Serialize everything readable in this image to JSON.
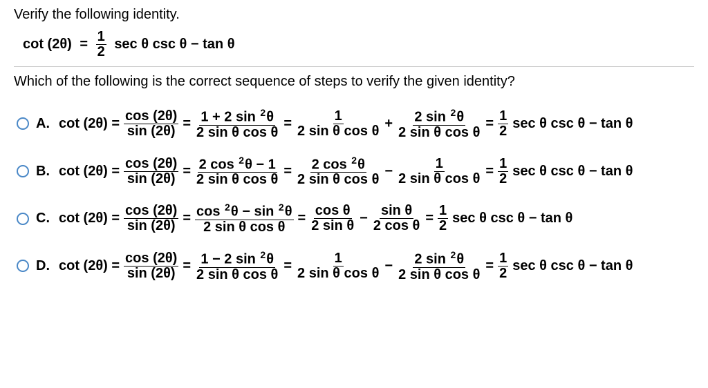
{
  "topRule": true,
  "prompt": "Verify the following identity.",
  "identity": {
    "left": "cot (2θ)",
    "eq": " = ",
    "frac": {
      "num": "1",
      "den": "2"
    },
    "right_after_frac": " sec θ csc θ − tan θ"
  },
  "midRule": true,
  "subprompt": "Which of the following is the correct sequence of steps to verify the given identity?",
  "options": [
    {
      "label": "A.",
      "start": "cot (2θ) = ",
      "parts": [
        {
          "type": "frac",
          "num": "cos (2θ)",
          "den": "sin (2θ)"
        },
        {
          "type": "txt",
          "text": " = "
        },
        {
          "type": "frac",
          "num": "1 + 2 sin ²θ",
          "den": "2 sin θ cos θ"
        },
        {
          "type": "txt",
          "text": " = "
        },
        {
          "type": "frac",
          "num": "1",
          "den": "2 sin θ cos θ"
        },
        {
          "type": "txt",
          "text": " + "
        },
        {
          "type": "frac",
          "num": "2 sin ²θ",
          "den": "2 sin θ cos θ"
        },
        {
          "type": "txt",
          "text": " = "
        },
        {
          "type": "frac",
          "num": "1",
          "den": "2"
        },
        {
          "type": "txt",
          "text": " sec θ csc θ − tan θ"
        }
      ]
    },
    {
      "label": "B.",
      "start": "cot (2θ) = ",
      "parts": [
        {
          "type": "frac",
          "num": "cos (2θ)",
          "den": "sin (2θ)"
        },
        {
          "type": "txt",
          "text": " = "
        },
        {
          "type": "frac",
          "num": "2 cos ²θ − 1",
          "den": "2 sin θ cos θ"
        },
        {
          "type": "txt",
          "text": " = "
        },
        {
          "type": "frac",
          "num": "2 cos ²θ",
          "den": "2 sin θ cos θ"
        },
        {
          "type": "txt",
          "text": " − "
        },
        {
          "type": "frac",
          "num": "1",
          "den": "2 sin θ cos θ"
        },
        {
          "type": "txt",
          "text": " = "
        },
        {
          "type": "frac",
          "num": "1",
          "den": "2"
        },
        {
          "type": "txt",
          "text": " sec θ csc θ − tan θ"
        }
      ]
    },
    {
      "label": "C.",
      "start": "cot (2θ) = ",
      "parts": [
        {
          "type": "frac",
          "num": "cos (2θ)",
          "den": "sin (2θ)"
        },
        {
          "type": "txt",
          "text": " = "
        },
        {
          "type": "frac",
          "num": "cos ²θ − sin ²θ",
          "den": "2 sin θ cos θ"
        },
        {
          "type": "txt",
          "text": " = "
        },
        {
          "type": "frac",
          "num": "cos θ",
          "den": "2 sin θ"
        },
        {
          "type": "txt",
          "text": " − "
        },
        {
          "type": "frac",
          "num": "sin θ",
          "den": "2 cos θ"
        },
        {
          "type": "txt",
          "text": " = "
        },
        {
          "type": "frac",
          "num": "1",
          "den": "2"
        },
        {
          "type": "txt",
          "text": " sec θ csc θ − tan θ"
        }
      ]
    },
    {
      "label": "D.",
      "start": "cot (2θ) = ",
      "parts": [
        {
          "type": "frac",
          "num": "cos (2θ)",
          "den": "sin (2θ)"
        },
        {
          "type": "txt",
          "text": " = "
        },
        {
          "type": "frac",
          "num": "1 − 2 sin ²θ",
          "den": "2 sin θ cos θ"
        },
        {
          "type": "txt",
          "text": " = "
        },
        {
          "type": "frac",
          "num": "1",
          "den": "2 sin θ cos θ"
        },
        {
          "type": "txt",
          "text": " − "
        },
        {
          "type": "frac",
          "num": "2 sin ²θ",
          "den": "2 sin θ cos θ"
        },
        {
          "type": "txt",
          "text": " = "
        },
        {
          "type": "frac",
          "num": "1",
          "den": "2"
        },
        {
          "type": "txt",
          "text": " sec θ csc θ − tan θ"
        }
      ]
    }
  ],
  "colors": {
    "text": "#000000",
    "background": "#ffffff",
    "radio_border": "#4a88c7",
    "rule": "#c8c8c8"
  }
}
